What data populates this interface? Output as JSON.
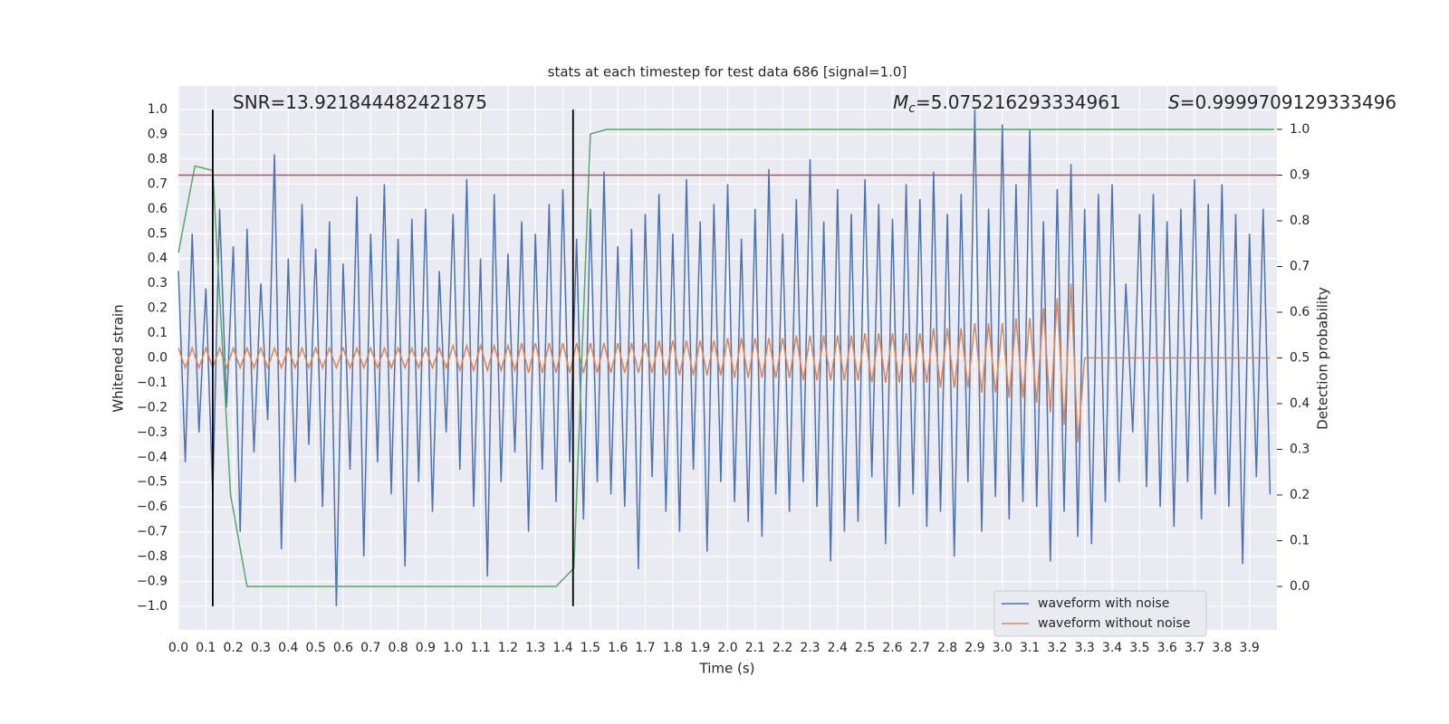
{
  "chart_data": {
    "type": "line",
    "title": "stats at each timestep for test data 686 [signal=1.0]",
    "xlabel": "Time (s)",
    "ylabel": "Whitened strain",
    "y2label": "Detection probability",
    "grid": true,
    "legend": "lower right",
    "xlim": [
      0,
      4
    ],
    "ylim": [
      -1.095,
      1.095
    ],
    "y2lim": [
      -0.095,
      1.095
    ],
    "xticks": [
      {
        "value": 0,
        "label": "0.0"
      },
      0.1,
      0.2,
      0.3,
      0.4,
      0.5,
      0.6,
      0.7,
      0.8,
      0.9,
      {
        "value": 1,
        "label": "1.0"
      },
      1.1,
      1.2,
      1.3,
      1.4,
      1.5,
      1.6,
      1.7,
      1.8,
      1.9,
      {
        "value": 2,
        "label": "2.0"
      },
      2.1,
      2.2,
      2.3,
      2.4,
      2.5,
      2.6,
      2.7,
      2.8,
      2.9,
      {
        "value": 3,
        "label": "3.0"
      },
      3.1,
      3.2,
      3.3,
      3.4,
      3.5,
      3.6,
      3.7,
      3.8,
      3.9
    ],
    "yticks": [
      {
        "value": 1,
        "label": "1.0"
      },
      0.9,
      0.8,
      0.7,
      0.6,
      0.5,
      0.4,
      0.3,
      0.2,
      0.1,
      {
        "value": 0,
        "label": "0.0"
      },
      {
        "value": -0.1,
        "label": "−0.1"
      },
      {
        "value": -0.2,
        "label": "−0.2"
      },
      {
        "value": -0.3,
        "label": "−0.3"
      },
      {
        "value": -0.4,
        "label": "−0.4"
      },
      {
        "value": -0.5,
        "label": "−0.5"
      },
      {
        "value": -0.6,
        "label": "−0.6"
      },
      {
        "value": -0.7,
        "label": "−0.7"
      },
      {
        "value": -0.8,
        "label": "−0.8"
      },
      {
        "value": -0.9,
        "label": "−0.9"
      },
      {
        "value": -1,
        "label": "−1.0"
      }
    ],
    "y2ticks": [
      {
        "value": 1,
        "label": "1.0"
      },
      0.9,
      0.8,
      0.7,
      0.6,
      0.5,
      0.4,
      0.3,
      0.2,
      0.1,
      {
        "value": 0,
        "label": "0.0"
      }
    ],
    "annotations": [
      {
        "text": "SNR=13.921844482421875"
      },
      {
        "symbol": "M",
        "subscript": "c",
        "text": "=5.075216293334961"
      },
      {
        "symbol": "S",
        "text": "=0.9999709129333496"
      }
    ],
    "hlines": [
      {
        "value": 0.9,
        "axis": "y2",
        "color": "#c44e52"
      }
    ],
    "vlines": [
      0.125,
      1.437
    ],
    "vline_color": "#000000",
    "x": [
      0,
      0.025,
      0.05,
      0.075,
      0.1,
      0.125,
      0.15,
      0.175,
      0.2,
      0.225,
      0.25,
      0.275,
      0.3,
      0.325,
      0.35,
      0.375,
      0.4,
      0.425,
      0.45,
      0.475,
      0.5,
      0.525,
      0.55,
      0.575,
      0.6,
      0.625,
      0.65,
      0.675,
      0.7,
      0.725,
      0.75,
      0.775,
      0.8,
      0.825,
      0.85,
      0.875,
      0.9,
      0.925,
      0.95,
      0.975,
      1,
      1.025,
      1.05,
      1.075,
      1.1,
      1.125,
      1.15,
      1.175,
      1.2,
      1.225,
      1.25,
      1.275,
      1.3,
      1.325,
      1.35,
      1.375,
      1.4,
      1.425,
      1.45,
      1.475,
      1.5,
      1.525,
      1.55,
      1.575,
      1.6,
      1.625,
      1.65,
      1.675,
      1.7,
      1.725,
      1.75,
      1.775,
      1.8,
      1.825,
      1.85,
      1.875,
      1.9,
      1.925,
      1.95,
      1.975,
      2,
      2.025,
      2.05,
      2.075,
      2.1,
      2.125,
      2.15,
      2.175,
      2.2,
      2.225,
      2.25,
      2.275,
      2.3,
      2.325,
      2.35,
      2.375,
      2.4,
      2.425,
      2.45,
      2.475,
      2.5,
      2.525,
      2.55,
      2.575,
      2.6,
      2.625,
      2.65,
      2.675,
      2.7,
      2.725,
      2.75,
      2.775,
      2.8,
      2.825,
      2.85,
      2.875,
      2.9,
      2.925,
      2.95,
      2.975,
      3,
      3.025,
      3.05,
      3.075,
      3.1,
      3.125,
      3.15,
      3.175,
      3.2,
      3.225,
      3.25,
      3.275,
      3.3,
      3.325,
      3.35,
      3.375,
      3.4,
      3.425,
      3.45,
      3.475,
      3.5,
      3.525,
      3.55,
      3.575,
      3.6,
      3.625,
      3.65,
      3.675,
      3.7,
      3.725,
      3.75,
      3.775,
      3.8,
      3.825,
      3.85,
      3.875,
      3.9,
      3.925,
      3.95,
      3.975
    ],
    "series": [
      {
        "name": "waveform with noise",
        "color": "#4c72b0",
        "values": [
          0.35,
          -0.42,
          0.5,
          -0.3,
          0.28,
          -0.55,
          0.6,
          -0.2,
          0.45,
          -0.7,
          0.52,
          -0.38,
          0.3,
          -0.25,
          0.82,
          -0.77,
          0.4,
          -0.5,
          0.62,
          -0.35,
          0.44,
          -0.6,
          0.55,
          -1.0,
          0.38,
          -0.45,
          0.65,
          -0.8,
          0.5,
          -0.42,
          0.7,
          -0.55,
          0.48,
          -0.84,
          0.56,
          -0.5,
          0.6,
          -0.62,
          0.35,
          -0.3,
          0.58,
          -0.45,
          0.72,
          -0.6,
          0.4,
          -0.88,
          0.66,
          -0.5,
          0.42,
          -0.38,
          0.55,
          -0.7,
          0.5,
          -0.45,
          0.62,
          -0.58,
          0.68,
          -0.42,
          0.48,
          -0.65,
          0.6,
          -0.5,
          0.75,
          -0.55,
          0.45,
          -0.6,
          0.52,
          -0.85,
          0.58,
          -0.48,
          0.66,
          -0.62,
          0.5,
          -0.7,
          0.72,
          -0.45,
          0.55,
          -0.78,
          0.62,
          -0.5,
          0.7,
          -0.58,
          0.48,
          -0.66,
          0.6,
          -0.72,
          0.76,
          -0.55,
          0.5,
          -0.62,
          0.64,
          -0.5,
          0.8,
          -0.6,
          0.55,
          -0.82,
          0.68,
          -0.7,
          0.58,
          -0.66,
          0.72,
          -0.48,
          0.62,
          -0.75,
          0.56,
          -0.6,
          0.7,
          -0.55,
          0.64,
          -0.68,
          0.75,
          -0.62,
          0.58,
          -0.8,
          0.66,
          -0.5,
          1.0,
          -0.7,
          0.6,
          -0.56,
          0.94,
          -0.65,
          0.7,
          -0.58,
          0.92,
          -0.6,
          0.55,
          -0.82,
          0.68,
          -0.62,
          0.78,
          -0.72,
          0.6,
          -0.75,
          0.66,
          -0.58,
          0.7,
          -0.5,
          0.3,
          -0.3,
          0.58,
          -0.52,
          0.66,
          -0.6,
          0.55,
          -0.68,
          0.6,
          -0.5,
          0.72,
          -0.65,
          0.62,
          -0.55,
          0.7,
          -0.6,
          0.58,
          -0.83,
          0.5,
          -0.48,
          0.6,
          -0.55
        ]
      },
      {
        "name": "waveform without noise",
        "color": "#dd8452",
        "values": [
          0.04,
          -0.04,
          0.04,
          -0.04,
          0.04,
          -0.04,
          0.04,
          -0.04,
          0.04,
          -0.04,
          0.04,
          -0.04,
          0.04,
          -0.04,
          0.04,
          -0.04,
          0.04,
          -0.04,
          0.04,
          -0.04,
          0.04,
          -0.04,
          0.04,
          -0.04,
          0.04,
          -0.04,
          0.04,
          -0.04,
          0.04,
          -0.04,
          0.04,
          -0.04,
          0.04,
          -0.04,
          0.04,
          -0.04,
          0.04,
          -0.04,
          0.04,
          -0.04,
          0.05,
          -0.05,
          0.05,
          -0.05,
          0.05,
          -0.05,
          0.05,
          -0.05,
          0.05,
          -0.05,
          0.06,
          -0.06,
          0.06,
          -0.06,
          0.06,
          -0.06,
          0.06,
          -0.06,
          0.06,
          -0.06,
          0.06,
          -0.06,
          0.06,
          -0.06,
          0.06,
          -0.06,
          0.06,
          -0.06,
          0.06,
          -0.06,
          0.07,
          -0.07,
          0.07,
          -0.07,
          0.07,
          -0.07,
          0.07,
          -0.07,
          0.07,
          -0.07,
          0.08,
          -0.08,
          0.08,
          -0.08,
          0.08,
          -0.08,
          0.08,
          -0.08,
          0.08,
          -0.08,
          0.09,
          -0.09,
          0.09,
          -0.09,
          0.09,
          -0.09,
          0.09,
          -0.09,
          0.09,
          -0.09,
          0.1,
          -0.1,
          0.1,
          -0.1,
          0.1,
          -0.1,
          0.1,
          -0.1,
          0.1,
          -0.1,
          0.12,
          -0.12,
          0.12,
          -0.12,
          0.12,
          -0.12,
          0.14,
          -0.14,
          0.14,
          -0.14,
          0.14,
          -0.16,
          0.16,
          -0.16,
          0.16,
          -0.18,
          0.2,
          -0.22,
          0.24,
          -0.27,
          0.3,
          -0.34,
          0,
          0,
          0,
          0,
          0,
          0,
          0,
          0,
          0,
          0,
          0,
          0,
          0,
          0,
          0,
          0,
          0,
          0,
          0,
          0,
          0,
          0,
          0,
          0,
          0,
          0,
          0,
          0
        ]
      },
      {
        "color": "#55a868",
        "axis": "y2",
        "x": [
          0,
          0.06,
          0.125,
          0.19,
          0.25,
          1.375,
          1.44,
          1.5,
          1.56,
          3.99
        ],
        "values": [
          0.73,
          0.92,
          0.91,
          0.2,
          0,
          0,
          0.04,
          0.99,
          1,
          1
        ]
      }
    ]
  }
}
